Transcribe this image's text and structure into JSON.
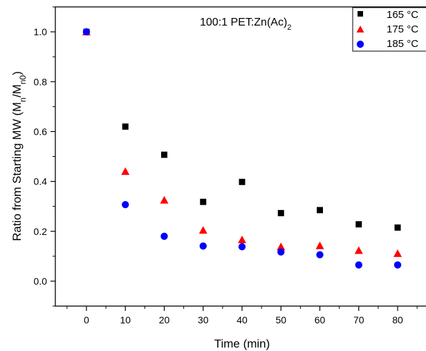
{
  "chart_data": {
    "type": "scatter",
    "annotation": {
      "prefix": "100:1 PET:Zn(Ac)",
      "subscript": "2"
    },
    "xlabel": "Time (min)",
    "ylabel": {
      "before": "Ratio from Starting MW (M",
      "sub1": "n",
      "mid": "/M",
      "sub2": "n0",
      "after": ")"
    },
    "xlim": [
      -8,
      88
    ],
    "ylim": [
      -0.1,
      1.1
    ],
    "xticks": [
      0,
      10,
      20,
      30,
      40,
      50,
      60,
      70,
      80
    ],
    "yticks": [
      0.0,
      0.2,
      0.4,
      0.6,
      0.8,
      1.0
    ],
    "xtick_labels": [
      "0",
      "10",
      "20",
      "30",
      "40",
      "50",
      "60",
      "70",
      "80"
    ],
    "ytick_labels": [
      "0.0",
      "0.2",
      "0.4",
      "0.6",
      "0.8",
      "1.0"
    ],
    "grid": false,
    "legend_position": "top-right",
    "series": [
      {
        "name": "165 °C",
        "marker": "square",
        "color": "#000000",
        "x": [
          0,
          10,
          20,
          30,
          40,
          50,
          60,
          70,
          80
        ],
        "y": [
          1.0,
          0.62,
          0.507,
          0.318,
          0.398,
          0.273,
          0.285,
          0.228,
          0.215
        ]
      },
      {
        "name": "175 °C",
        "marker": "triangle",
        "color": "#ff0000",
        "x": [
          0,
          10,
          20,
          30,
          40,
          50,
          60,
          70,
          80
        ],
        "y": [
          1.0,
          0.44,
          0.325,
          0.204,
          0.166,
          0.138,
          0.142,
          0.123,
          0.111
        ]
      },
      {
        "name": "185 °C",
        "marker": "circle",
        "color": "#0000ff",
        "x": [
          0,
          10,
          20,
          30,
          40,
          50,
          60,
          70,
          80
        ],
        "y": [
          1.0,
          0.307,
          0.18,
          0.141,
          0.138,
          0.117,
          0.106,
          0.065,
          0.065
        ]
      }
    ]
  }
}
